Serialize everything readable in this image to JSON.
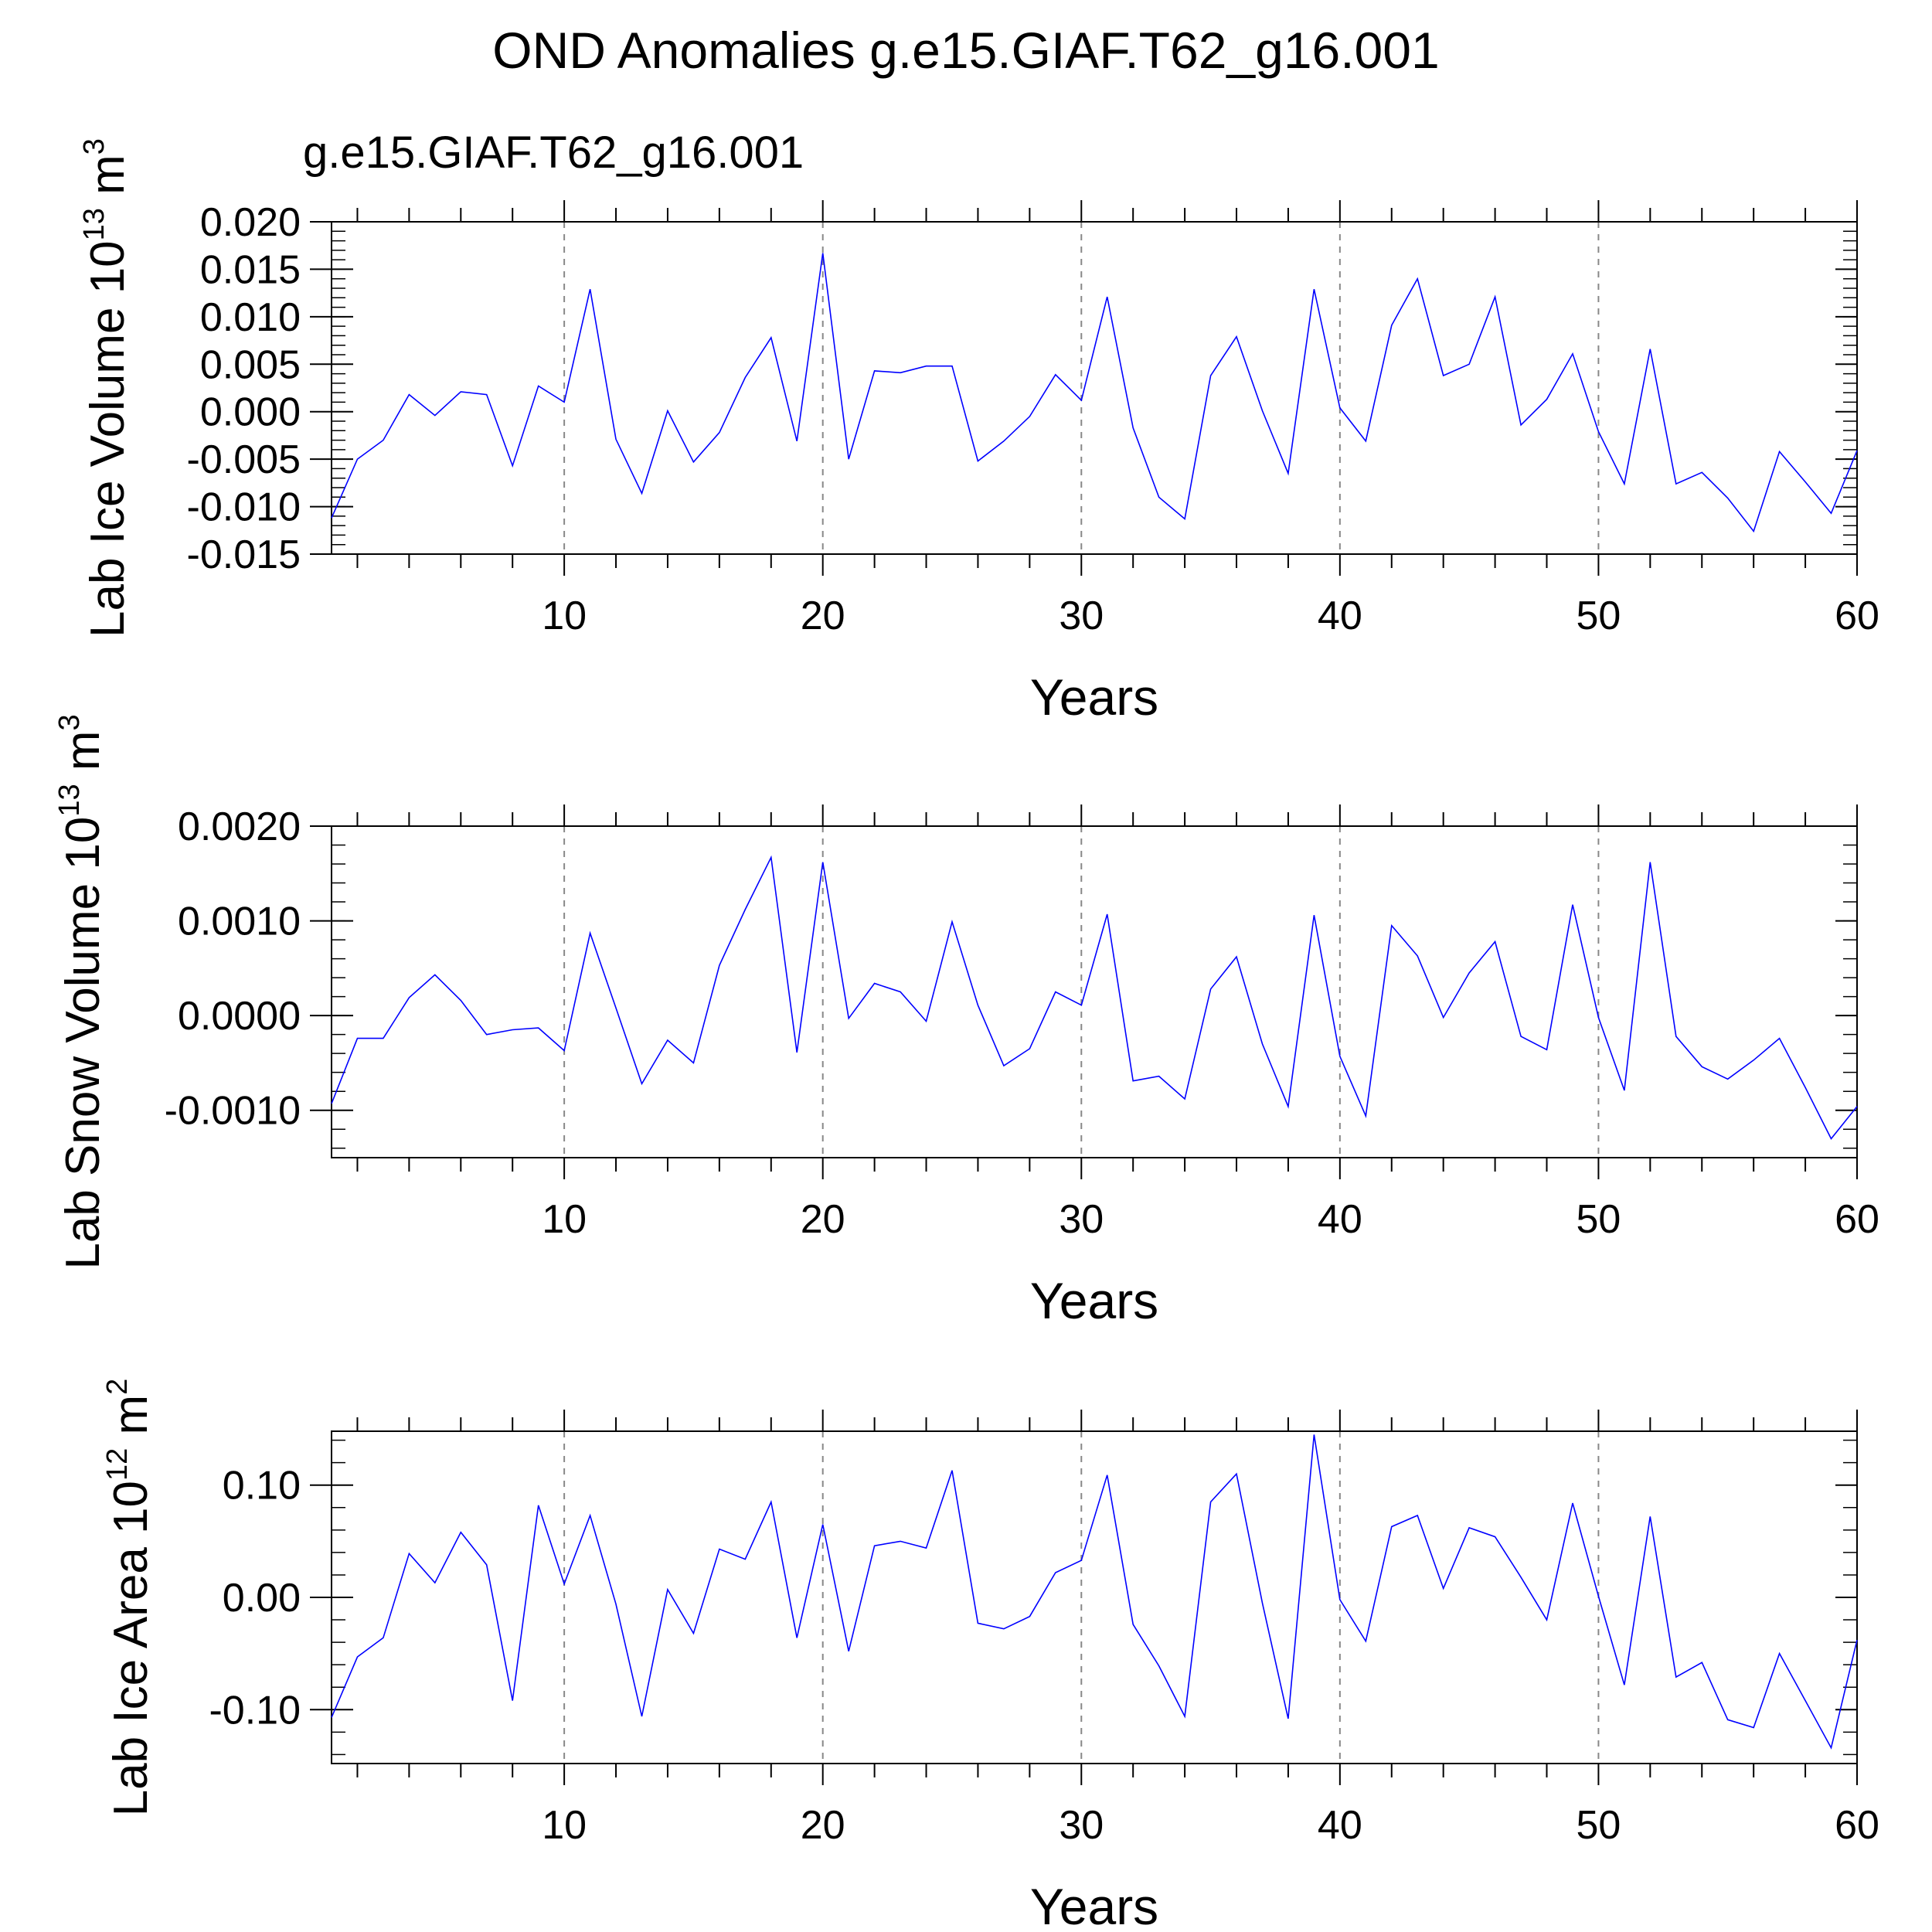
{
  "figure": {
    "title": "OND Anomalies g.e15.GIAF.T62_g16.001",
    "subtitle": "g.e15.GIAF.T62_g16.001",
    "subtitle_color": "#0000ff",
    "line_color": "#0000ff",
    "gridline_color": "#888888"
  },
  "chart_data": [
    {
      "type": "line",
      "title": "",
      "xlabel": "Years",
      "ylabel": "Lab Ice Volume 10",
      "ylabel_exp": "13",
      "ylabel_unit": " m",
      "ylabel_unit_exp": "3",
      "xlim": [
        1,
        60
      ],
      "ylim": [
        -0.015,
        0.02
      ],
      "xticks": [
        10,
        20,
        30,
        40,
        50,
        60
      ],
      "yticks": [
        -0.015,
        -0.01,
        -0.005,
        0.0,
        0.005,
        0.01,
        0.015,
        0.02
      ],
      "ytick_labels": [
        "-0.015",
        "-0.010",
        "-0.005",
        "0.000",
        "0.005",
        "0.010",
        "0.015",
        "0.020"
      ],
      "grid_x": [
        10,
        20,
        30,
        40,
        50
      ],
      "x": [
        1,
        2,
        3,
        4,
        5,
        6,
        7,
        8,
        9,
        10,
        11,
        12,
        13,
        14,
        15,
        16,
        17,
        18,
        19,
        20,
        21,
        22,
        23,
        24,
        25,
        26,
        27,
        28,
        29,
        30,
        31,
        32,
        33,
        34,
        35,
        36,
        37,
        38,
        39,
        40,
        41,
        42,
        43,
        44,
        45,
        46,
        47,
        48,
        49,
        50,
        51,
        52,
        53,
        54,
        55,
        56,
        57,
        58,
        59,
        60
      ],
      "series": [
        {
          "values": [
            -0.0112,
            -0.005,
            -0.003,
            0.0018,
            -0.0004,
            0.0021,
            0.0018,
            -0.0057,
            0.0027,
            0.001,
            0.0129,
            -0.0029,
            -0.0086,
            0.0001,
            -0.0053,
            -0.0022,
            0.0036,
            0.0078,
            -0.0031,
            0.0167,
            -0.005,
            0.0043,
            0.0041,
            0.0048,
            0.0048,
            -0.0052,
            -0.0031,
            -0.0005,
            0.0039,
            0.0012,
            0.0121,
            -0.0017,
            -0.009,
            -0.0113,
            0.0038,
            0.0079,
            0.0001,
            -0.0065,
            0.0129,
            0.0004,
            -0.0031,
            0.0091,
            0.014,
            0.0038,
            0.005,
            0.0121,
            -0.0014,
            0.0013,
            0.0061,
            -0.0021,
            -0.0076,
            0.0066,
            -0.0076,
            -0.0064,
            -0.0091,
            -0.0126,
            -0.0042,
            -0.0074,
            -0.0107,
            -0.0041
          ]
        }
      ]
    },
    {
      "type": "line",
      "title": "",
      "xlabel": "Years",
      "ylabel": "Lab Snow Volume 10",
      "ylabel_exp": "13",
      "ylabel_unit": " m",
      "ylabel_unit_exp": "3",
      "xlim": [
        1,
        60
      ],
      "ylim": [
        -0.0015,
        0.002
      ],
      "xticks": [
        10,
        20,
        30,
        40,
        50,
        60
      ],
      "yticks": [
        -0.001,
        0.0,
        0.001,
        0.002
      ],
      "ytick_labels": [
        "-0.0010",
        "0.0000",
        "0.0010",
        "0.0020"
      ],
      "grid_x": [
        10,
        20,
        30,
        40,
        50
      ],
      "x": [
        1,
        2,
        3,
        4,
        5,
        6,
        7,
        8,
        9,
        10,
        11,
        12,
        13,
        14,
        15,
        16,
        17,
        18,
        19,
        20,
        21,
        22,
        23,
        24,
        25,
        26,
        27,
        28,
        29,
        30,
        31,
        32,
        33,
        34,
        35,
        36,
        37,
        38,
        39,
        40,
        41,
        42,
        43,
        44,
        45,
        46,
        47,
        48,
        49,
        50,
        51,
        52,
        53,
        54,
        55,
        56,
        57,
        58,
        59,
        60
      ],
      "series": [
        {
          "values": [
            -0.00093,
            -0.00024,
            -0.00024,
            0.00019,
            0.00043,
            0.00016,
            -0.0002,
            -0.00015,
            -0.00013,
            -0.00037,
            0.00087,
            8e-05,
            -0.00072,
            -0.00026,
            -0.0005,
            0.00053,
            0.00112,
            0.00167,
            -0.00039,
            0.00162,
            -3e-05,
            0.00034,
            0.00025,
            -6e-05,
            0.00099,
            0.00011,
            -0.00053,
            -0.00035,
            0.00025,
            0.00011,
            0.00107,
            -0.00069,
            -0.00064,
            -0.00088,
            0.00028,
            0.00062,
            -0.0003,
            -0.00096,
            0.00106,
            -0.00043,
            -0.00106,
            0.00095,
            0.00063,
            -2e-05,
            0.00045,
            0.00078,
            -0.00022,
            -0.00036,
            0.00117,
            -2e-05,
            -0.00079,
            0.00162,
            -0.00022,
            -0.00054,
            -0.00067,
            -0.00047,
            -0.00024,
            -0.00076,
            -0.0013,
            -0.00096
          ]
        }
      ]
    },
    {
      "type": "line",
      "title": "",
      "xlabel": "Years",
      "ylabel": "Lab Ice Area 10",
      "ylabel_exp": "12",
      "ylabel_unit": " m",
      "ylabel_unit_exp": "2",
      "xlim": [
        1,
        60
      ],
      "ylim": [
        -0.148,
        0.148
      ],
      "xticks": [
        10,
        20,
        30,
        40,
        50,
        60
      ],
      "yticks": [
        -0.1,
        0.0,
        0.1
      ],
      "ytick_labels": [
        "-0.10",
        "0.00",
        "0.10"
      ],
      "grid_x": [
        10,
        20,
        30,
        40,
        50
      ],
      "x": [
        1,
        2,
        3,
        4,
        5,
        6,
        7,
        8,
        9,
        10,
        11,
        12,
        13,
        14,
        15,
        16,
        17,
        18,
        19,
        20,
        21,
        22,
        23,
        24,
        25,
        26,
        27,
        28,
        29,
        30,
        31,
        32,
        33,
        34,
        35,
        36,
        37,
        38,
        39,
        40,
        41,
        42,
        43,
        44,
        45,
        46,
        47,
        48,
        49,
        50,
        51,
        52,
        53,
        54,
        55,
        56,
        57,
        58,
        59,
        60
      ],
      "series": [
        {
          "values": [
            -0.107,
            -0.053,
            -0.036,
            0.039,
            0.013,
            0.058,
            0.029,
            -0.092,
            0.082,
            0.012,
            0.073,
            -0.006,
            -0.106,
            0.007,
            -0.032,
            0.043,
            0.034,
            0.085,
            -0.036,
            0.065,
            -0.048,
            0.046,
            0.05,
            0.044,
            0.113,
            -0.023,
            -0.028,
            -0.017,
            0.022,
            0.033,
            0.109,
            -0.024,
            -0.061,
            -0.106,
            0.085,
            0.11,
            -0.005,
            -0.108,
            0.145,
            -0.002,
            -0.039,
            0.063,
            0.073,
            0.008,
            0.062,
            0.054,
            0.018,
            -0.02,
            0.084,
            0.001,
            -0.078,
            0.072,
            -0.071,
            -0.058,
            -0.109,
            -0.116,
            -0.05,
            -0.092,
            -0.134,
            -0.038
          ]
        }
      ]
    }
  ]
}
